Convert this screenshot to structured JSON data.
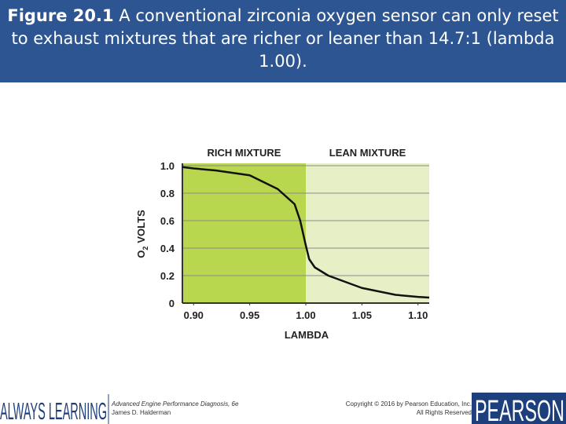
{
  "header": {
    "figure": "Figure 20.1",
    "caption": "A conventional zirconia oxygen sensor can only reset to exhaust mixtures that are richer or leaner than 14.7:1 (lambda 1.00)."
  },
  "chart_data": {
    "type": "line",
    "xlabel": "LAMBDA",
    "ylabel": [
      "O",
      "2",
      "VOLTS"
    ],
    "regions": [
      {
        "name": "RICH MIXTURE",
        "from": 0.89,
        "to": 1.0,
        "color": "#b8d64e"
      },
      {
        "name": "LEAN MIXTURE",
        "from": 1.0,
        "to": 1.11,
        "color": "#e7efc6"
      }
    ],
    "x": [
      0.89,
      0.9,
      0.92,
      0.95,
      0.975,
      0.99,
      0.995,
      1.0,
      1.003,
      1.008,
      1.02,
      1.03,
      1.05,
      1.08,
      1.1,
      1.11
    ],
    "series": [
      {
        "name": "O2 sensor output",
        "color": "#111111",
        "values": [
          0.99,
          0.98,
          0.965,
          0.93,
          0.83,
          0.72,
          0.6,
          0.42,
          0.32,
          0.26,
          0.2,
          0.17,
          0.11,
          0.06,
          0.045,
          0.04
        ]
      }
    ],
    "xlim": [
      0.89,
      1.11
    ],
    "xticks": [
      {
        "value": 0.9,
        "label": "0.90"
      },
      0.95,
      {
        "value": 1.0,
        "label": "1.00"
      },
      1.05,
      {
        "value": 1.1,
        "label": "1.10"
      }
    ],
    "ylim": [
      0,
      1
    ],
    "yticks": [
      0,
      0.2,
      0.4,
      0.6,
      0.8,
      {
        "value": 1,
        "label": "1.0"
      }
    ],
    "grid": true
  },
  "footer": {
    "brand": "ALWAYS LEARNING",
    "book": "Advanced Engine Performance Diagnosis, 6e",
    "author": "James D. Halderman",
    "copyright": "Copyright © 2016 by Pearson Education, Inc.",
    "rights": "All Rights Reserved",
    "logo": "PEARSON"
  }
}
